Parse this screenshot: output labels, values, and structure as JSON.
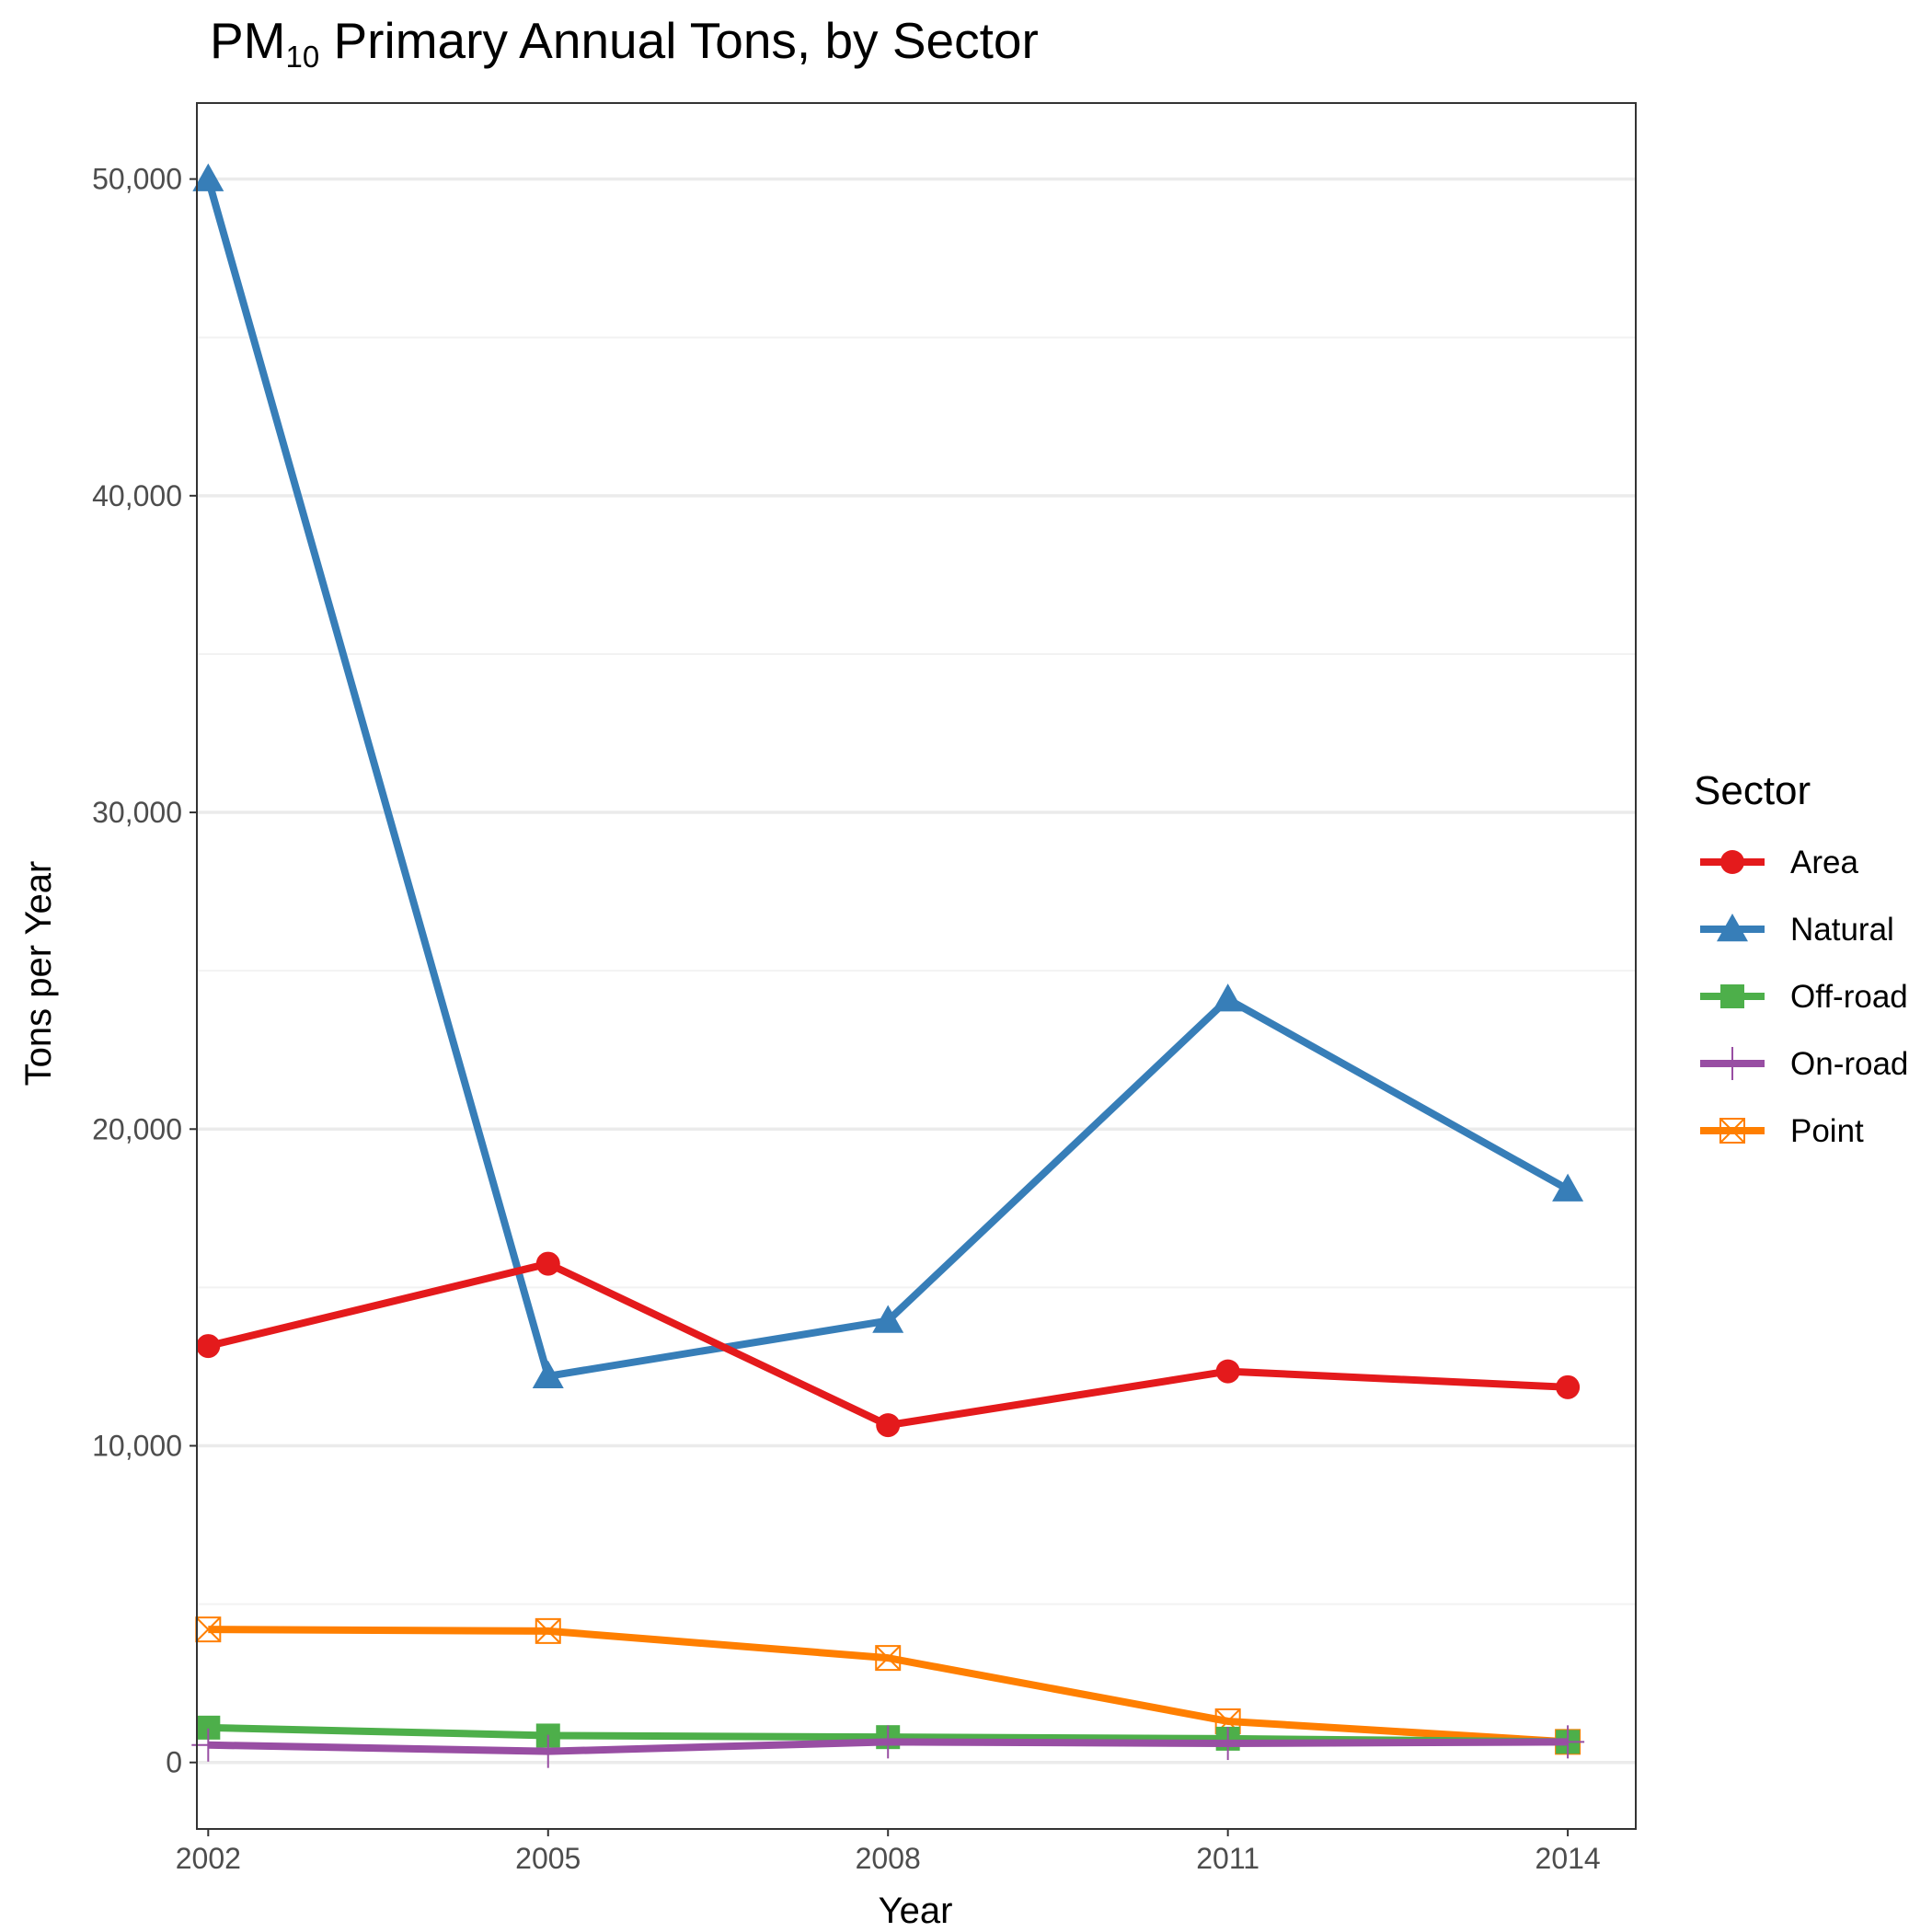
{
  "chart_data": {
    "type": "line",
    "title_main": "PM",
    "title_sub": "10",
    "title_rest": " Primary Annual Tons, by Sector",
    "xlabel": "Year",
    "ylabel": "Tons per Year",
    "x": [
      2002,
      2005,
      2008,
      2011,
      2014
    ],
    "x_ticks": [
      "2002",
      "2005",
      "2008",
      "2011",
      "2014"
    ],
    "xlim": [
      2001.9,
      2014.6
    ],
    "ylim": [
      -2100,
      52400
    ],
    "y_ticks": [
      0,
      10000,
      20000,
      30000,
      40000,
      50000
    ],
    "y_tick_labels": [
      "0",
      "10,000",
      "20,000",
      "30,000",
      "40,000",
      "50,000"
    ],
    "y_minor_ticks": [
      5000,
      15000,
      25000,
      35000,
      45000
    ],
    "grid": true,
    "legend_title": "Sector",
    "legend_position": "right",
    "series": [
      {
        "name": "Area",
        "color": "#E41A1C",
        "marker": "circle",
        "values": [
          13150,
          15750,
          10650,
          12350,
          11850
        ]
      },
      {
        "name": "Natural",
        "color": "#377EB8",
        "marker": "triangle",
        "values": [
          50000,
          12200,
          13950,
          24100,
          18100
        ]
      },
      {
        "name": "Off-road",
        "color": "#4DAF4A",
        "marker": "square",
        "values": [
          1100,
          850,
          800,
          750,
          650
        ]
      },
      {
        "name": "On-road",
        "color": "#984EA3",
        "marker": "plus",
        "values": [
          550,
          350,
          650,
          600,
          650
        ]
      },
      {
        "name": "Point",
        "color": "#FF7F00",
        "marker": "square-x",
        "values": [
          4200,
          4150,
          3300,
          1300,
          650
        ]
      }
    ]
  }
}
